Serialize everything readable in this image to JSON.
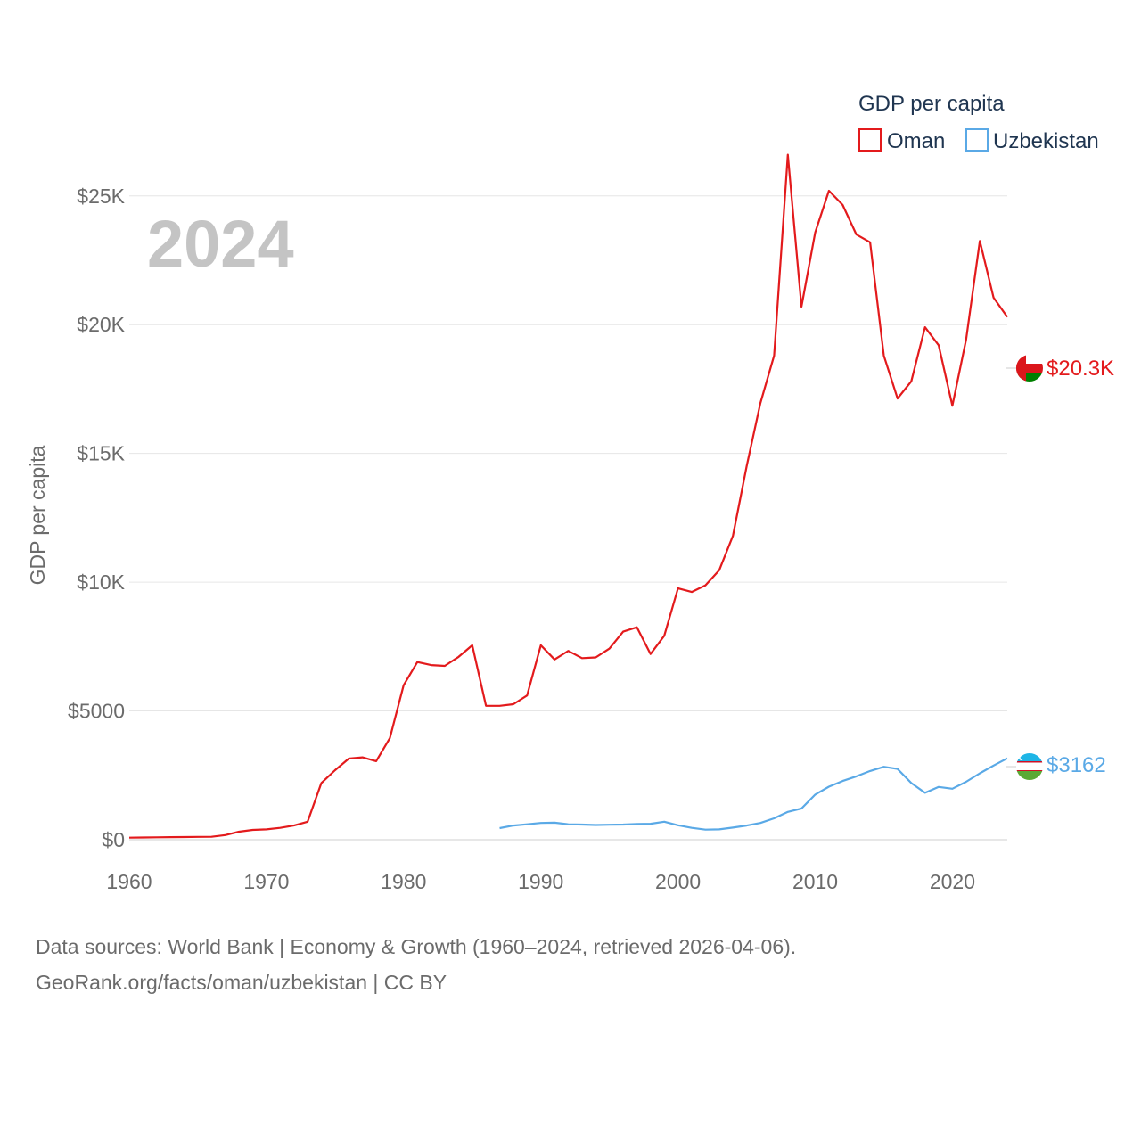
{
  "chart_data": {
    "type": "line",
    "title": "GDP per capita",
    "year_label": "2024",
    "ylabel": "GDP per capita",
    "xlabel": "",
    "xlim": [
      1960,
      2024
    ],
    "ylim": [
      0,
      27000
    ],
    "x_ticks": [
      1960,
      1970,
      1980,
      1990,
      2000,
      2010,
      2020
    ],
    "x_tick_labels": [
      "1960",
      "1970",
      "1980",
      "1990",
      "2000",
      "2010",
      "2020"
    ],
    "y_ticks": [
      0,
      5000,
      10000,
      15000,
      20000,
      25000
    ],
    "y_tick_labels": [
      "$0",
      "$5000",
      "$10K",
      "$15K",
      "$20K",
      "$25K"
    ],
    "legend": {
      "title": "GDP per capita",
      "position": "top-right"
    },
    "grid": true,
    "series": [
      {
        "name": "Oman",
        "color": "#e31a1c",
        "end_label": "$20.3K",
        "flag": "oman-flag",
        "x": [
          1960,
          1961,
          1962,
          1963,
          1964,
          1965,
          1966,
          1967,
          1968,
          1969,
          1970,
          1971,
          1972,
          1973,
          1974,
          1975,
          1976,
          1977,
          1978,
          1979,
          1980,
          1981,
          1982,
          1983,
          1984,
          1985,
          1986,
          1987,
          1988,
          1989,
          1990,
          1991,
          1992,
          1993,
          1994,
          1995,
          1996,
          1997,
          1998,
          1999,
          2000,
          2001,
          2002,
          2003,
          2004,
          2005,
          2006,
          2007,
          2008,
          2009,
          2010,
          2011,
          2012,
          2013,
          2014,
          2015,
          2016,
          2017,
          2018,
          2019,
          2020,
          2021,
          2022,
          2023,
          2024
        ],
        "values": [
          80,
          85,
          95,
          100,
          105,
          110,
          115,
          180,
          310,
          380,
          400,
          460,
          550,
          700,
          2200,
          2700,
          3150,
          3200,
          3050,
          3950,
          6000,
          6900,
          6780,
          6750,
          7100,
          7550,
          5200,
          5200,
          5260,
          5600,
          7550,
          7000,
          7330,
          7050,
          7080,
          7420,
          8080,
          8250,
          7210,
          7920,
          9760,
          9620,
          9880,
          10460,
          11800,
          14500,
          16950,
          18800,
          26600,
          20700,
          23580,
          25200,
          24650,
          23500,
          23200,
          18800,
          17130,
          17800,
          19900,
          19200,
          16850,
          19420,
          23250,
          21050,
          20300
        ]
      },
      {
        "name": "Uzbekistan",
        "color": "#5aa9e6",
        "end_label": "$3162",
        "flag": "uzbekistan-flag",
        "x": [
          1987,
          1988,
          1989,
          1990,
          1991,
          1992,
          1993,
          1994,
          1995,
          1996,
          1997,
          1998,
          1999,
          2000,
          2001,
          2002,
          2003,
          2004,
          2005,
          2006,
          2007,
          2008,
          2009,
          2010,
          2011,
          2012,
          2013,
          2014,
          2015,
          2016,
          2017,
          2018,
          2019,
          2020,
          2021,
          2022,
          2023,
          2024
        ],
        "values": [
          450,
          550,
          600,
          650,
          660,
          600,
          590,
          570,
          580,
          590,
          610,
          620,
          700,
          560,
          460,
          390,
          400,
          470,
          550,
          650,
          830,
          1080,
          1210,
          1750,
          2060,
          2280,
          2460,
          2670,
          2830,
          2750,
          2200,
          1820,
          2050,
          1980,
          2250,
          2580,
          2880,
          3162
        ]
      }
    ]
  },
  "footer": {
    "line1": "Data sources: World Bank | Economy & Growth (1960–2024, retrieved 2026-04-06).",
    "line2": "GeoRank.org/facts/oman/uzbekistan | CC BY"
  }
}
